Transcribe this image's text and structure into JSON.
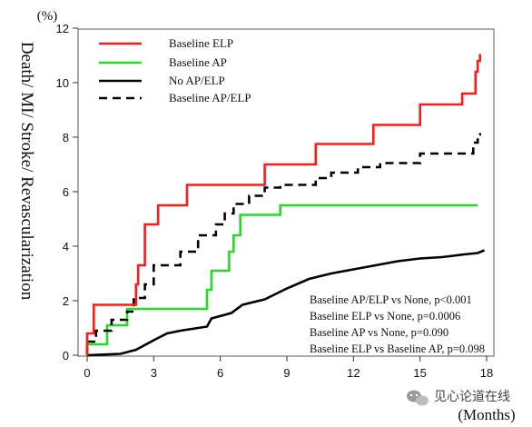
{
  "colors": {
    "elp": "#ff1a1a",
    "ap": "#22dd22",
    "none": "#000000",
    "apelp": "#000000"
  },
  "watermark": {
    "text": "见心论道在线",
    "icon": "wechat-icon"
  },
  "chart_data": {
    "type": "line",
    "title": "",
    "ylabel": "Death/ MI/ Stroke/ Revascularization",
    "y_unit": "(%)",
    "xlabel": "(Months)",
    "xlim": [
      0,
      18
    ],
    "ylim": [
      0,
      12
    ],
    "x_ticks": [
      0,
      3,
      6,
      9,
      12,
      15,
      18
    ],
    "y_ticks": [
      0,
      2,
      4,
      6,
      8,
      10,
      12
    ],
    "grid": false,
    "legend_position": "top-left",
    "series": [
      {
        "name": "Baseline  ELP",
        "style": "solid",
        "color": "#ff1a1a",
        "points": [
          [
            0,
            0
          ],
          [
            0,
            0.8
          ],
          [
            0.3,
            0.8
          ],
          [
            0.3,
            1.85
          ],
          [
            2.2,
            1.85
          ],
          [
            2.2,
            2.6
          ],
          [
            2.3,
            2.6
          ],
          [
            2.3,
            3.3
          ],
          [
            2.6,
            3.3
          ],
          [
            2.6,
            4.8
          ],
          [
            3.2,
            4.8
          ],
          [
            3.2,
            5.5
          ],
          [
            4.5,
            5.5
          ],
          [
            4.5,
            6.25
          ],
          [
            8,
            6.25
          ],
          [
            8,
            7
          ],
          [
            10.3,
            7
          ],
          [
            10.3,
            7.75
          ],
          [
            12.9,
            7.75
          ],
          [
            12.9,
            8.45
          ],
          [
            15,
            8.45
          ],
          [
            15,
            9.2
          ],
          [
            16.9,
            9.2
          ],
          [
            16.9,
            9.6
          ],
          [
            17.5,
            9.6
          ],
          [
            17.5,
            10.4
          ],
          [
            17.6,
            10.4
          ],
          [
            17.6,
            10.8
          ],
          [
            17.7,
            10.8
          ],
          [
            17.7,
            11.05
          ]
        ]
      },
      {
        "name": "Baseline  AP",
        "style": "solid",
        "color": "#22dd22",
        "points": [
          [
            0,
            0
          ],
          [
            0,
            0.4
          ],
          [
            0.9,
            0.4
          ],
          [
            0.9,
            1.1
          ],
          [
            1.8,
            1.1
          ],
          [
            1.8,
            1.7
          ],
          [
            5.4,
            1.7
          ],
          [
            5.4,
            2.4
          ],
          [
            5.6,
            2.4
          ],
          [
            5.6,
            3.1
          ],
          [
            6.4,
            3.1
          ],
          [
            6.4,
            3.8
          ],
          [
            6.6,
            3.8
          ],
          [
            6.6,
            4.4
          ],
          [
            6.9,
            4.4
          ],
          [
            6.9,
            5.15
          ],
          [
            8.7,
            5.15
          ],
          [
            8.7,
            5.5
          ],
          [
            17.6,
            5.5
          ]
        ]
      },
      {
        "name": "No AP/ELP",
        "style": "solid",
        "color": "#000000",
        "points": [
          [
            0,
            0
          ],
          [
            1.5,
            0.05
          ],
          [
            2.2,
            0.2
          ],
          [
            3,
            0.55
          ],
          [
            3.6,
            0.8
          ],
          [
            4.2,
            0.9
          ],
          [
            5.4,
            1.05
          ],
          [
            5.6,
            1.35
          ],
          [
            6.5,
            1.55
          ],
          [
            7,
            1.85
          ],
          [
            8,
            2.05
          ],
          [
            9,
            2.45
          ],
          [
            10,
            2.8
          ],
          [
            11,
            3
          ],
          [
            12,
            3.15
          ],
          [
            13,
            3.3
          ],
          [
            14,
            3.45
          ],
          [
            15,
            3.55
          ],
          [
            16,
            3.6
          ],
          [
            17,
            3.7
          ],
          [
            17.6,
            3.75
          ],
          [
            17.9,
            3.85
          ]
        ]
      },
      {
        "name": "Baseline  AP/ELP",
        "style": "dashed",
        "color": "#000000",
        "points": [
          [
            0,
            0
          ],
          [
            0,
            0.5
          ],
          [
            0.4,
            0.5
          ],
          [
            0.4,
            0.9
          ],
          [
            1.1,
            0.9
          ],
          [
            1.1,
            1.3
          ],
          [
            1.8,
            1.3
          ],
          [
            1.8,
            1.6
          ],
          [
            2.1,
            1.6
          ],
          [
            2.1,
            2.1
          ],
          [
            2.6,
            2.1
          ],
          [
            2.6,
            2.6
          ],
          [
            3,
            2.6
          ],
          [
            3,
            3.3
          ],
          [
            4.2,
            3.3
          ],
          [
            4.2,
            3.8
          ],
          [
            5,
            3.8
          ],
          [
            5,
            4.4
          ],
          [
            5.8,
            4.4
          ],
          [
            5.8,
            4.8
          ],
          [
            6.2,
            4.8
          ],
          [
            6.2,
            5.2
          ],
          [
            6.6,
            5.2
          ],
          [
            6.6,
            5.55
          ],
          [
            7.3,
            5.55
          ],
          [
            7.3,
            5.85
          ],
          [
            8,
            5.85
          ],
          [
            8,
            6.15
          ],
          [
            8.7,
            6.15
          ],
          [
            8.7,
            6.25
          ],
          [
            10.3,
            6.25
          ],
          [
            10.3,
            6.5
          ],
          [
            11,
            6.5
          ],
          [
            11,
            6.7
          ],
          [
            12.2,
            6.7
          ],
          [
            12.2,
            6.9
          ],
          [
            13.2,
            6.9
          ],
          [
            13.2,
            7.05
          ],
          [
            15,
            7.05
          ],
          [
            15,
            7.4
          ],
          [
            17.4,
            7.4
          ],
          [
            17.4,
            7.8
          ],
          [
            17.6,
            7.8
          ],
          [
            17.6,
            8.1
          ],
          [
            17.7,
            8.1
          ],
          [
            17.7,
            8.15
          ]
        ]
      }
    ],
    "annotations": [
      "Baseline  AP/ELP vs None, p<0.001",
      "Baseline  ELP vs None, p=0.0006",
      "Baseline  AP vs None, p=0.090",
      "Baseline  ELP vs Baseline  AP, p=0.098"
    ]
  }
}
